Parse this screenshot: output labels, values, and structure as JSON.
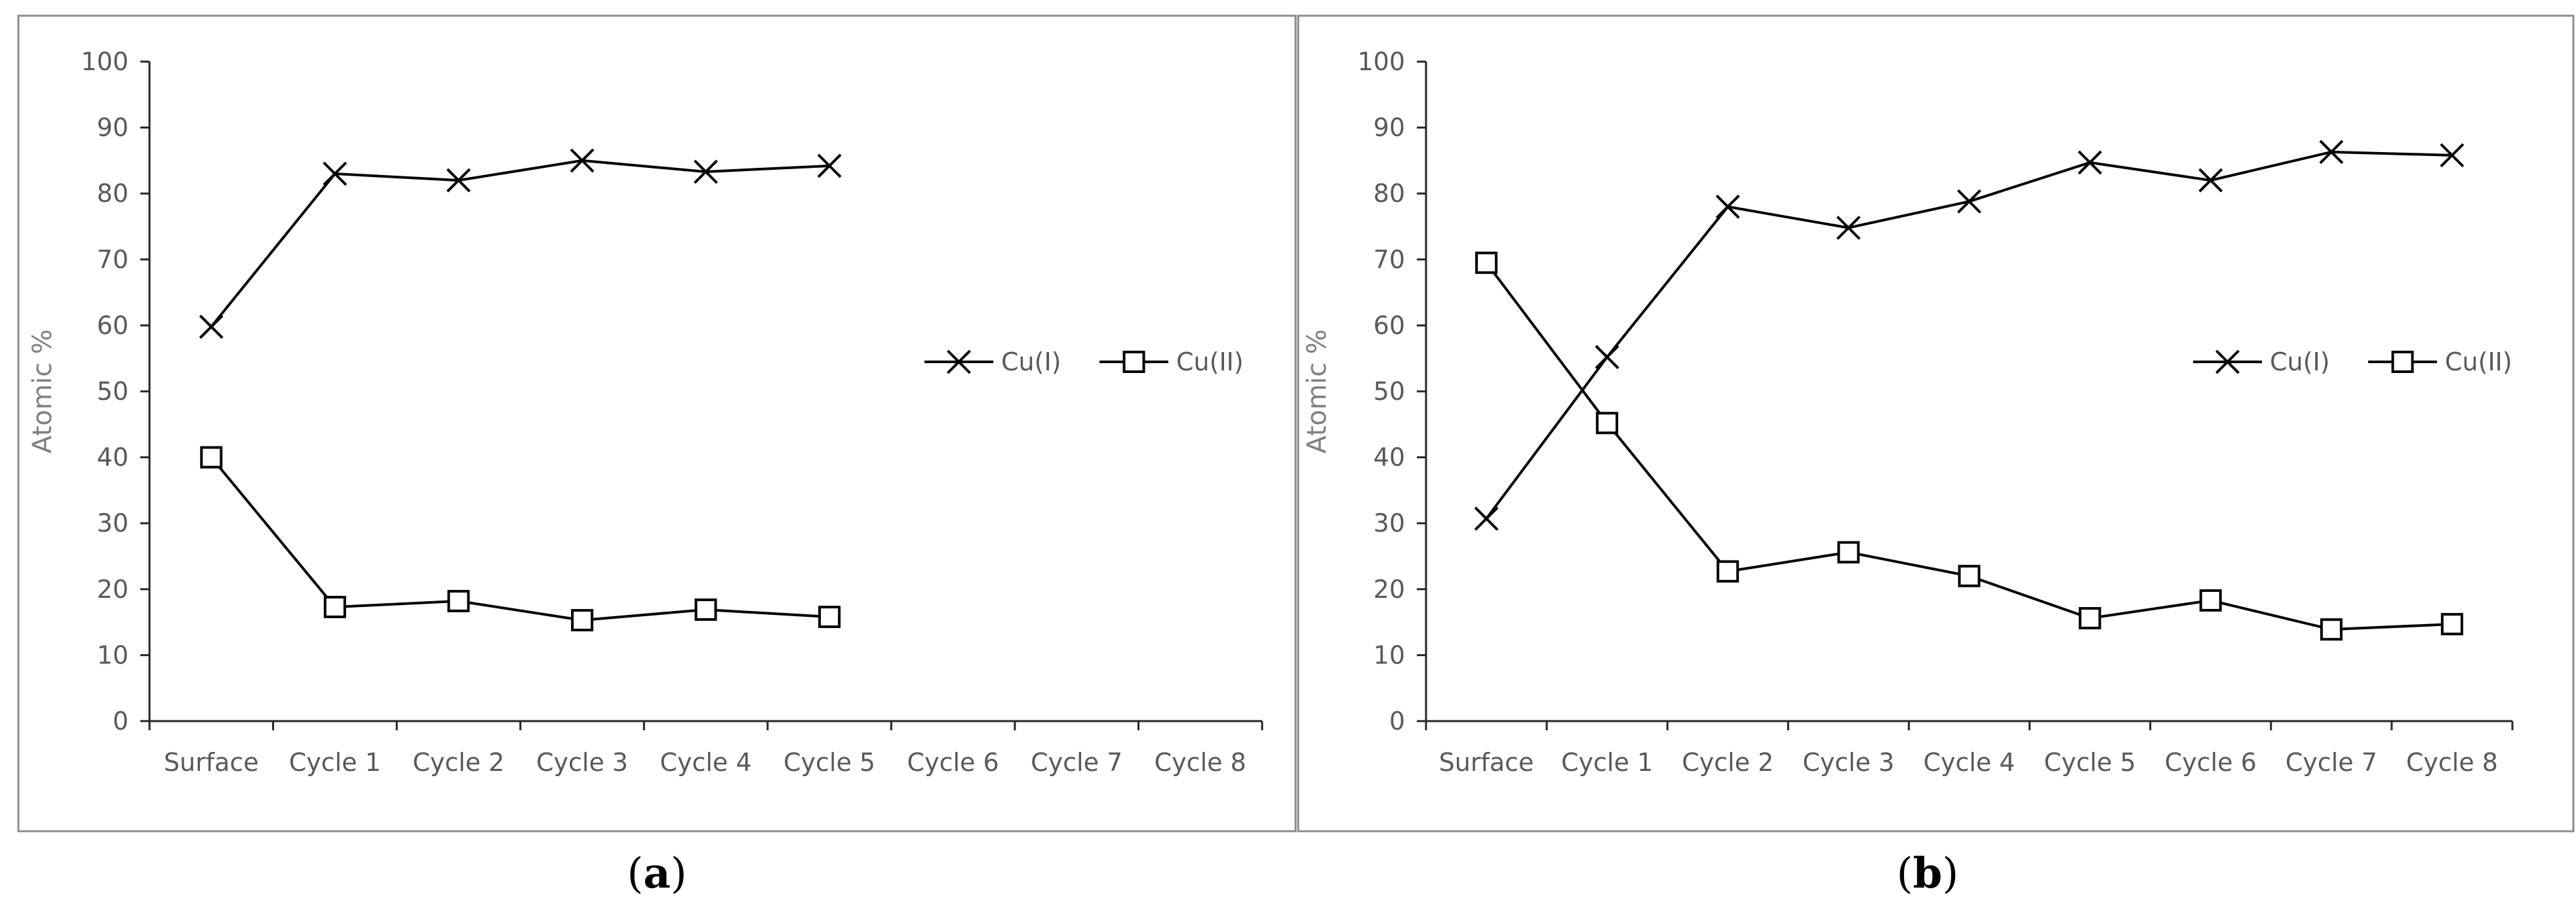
{
  "chart_data": [
    {
      "type": "line",
      "panel_label": "a",
      "categories": [
        "Surface",
        "Cycle 1",
        "Cycle 2",
        "Cycle 3",
        "Cycle 4",
        "Cycle 5",
        "Cycle 6",
        "Cycle 7",
        "Cycle 8"
      ],
      "series": [
        {
          "name": "Cu(I)",
          "marker": "x",
          "values": [
            59.8,
            83.0,
            82.0,
            85.0,
            83.3,
            84.2,
            null,
            null,
            null
          ]
        },
        {
          "name": "Cu(II)",
          "marker": "square",
          "values": [
            40.0,
            17.3,
            18.2,
            15.3,
            16.9,
            15.8,
            null,
            null,
            null
          ]
        }
      ],
      "ylabel": "Atomic %",
      "xlabel": "",
      "ylim": [
        0,
        100
      ],
      "yticks": [
        "0",
        "10",
        "20",
        "30",
        "40",
        "50",
        "60",
        "70",
        "80",
        "90",
        "100"
      ],
      "legend": "right",
      "grid": false
    },
    {
      "type": "line",
      "panel_label": "b",
      "categories": [
        "Surface",
        "Cycle 1",
        "Cycle 2",
        "Cycle 3",
        "Cycle 4",
        "Cycle 5",
        "Cycle 6",
        "Cycle 7",
        "Cycle 8"
      ],
      "series": [
        {
          "name": "Cu(I)",
          "marker": "x",
          "values": [
            30.7,
            55.2,
            78.0,
            74.8,
            78.8,
            84.7,
            82.0,
            86.3,
            85.8
          ]
        },
        {
          "name": "Cu(II)",
          "marker": "square",
          "values": [
            69.5,
            45.2,
            22.7,
            25.6,
            22.0,
            15.6,
            18.3,
            13.9,
            14.7
          ]
        }
      ],
      "ylabel": "Atomic %",
      "xlabel": "",
      "ylim": [
        0,
        100
      ],
      "yticks": [
        "0",
        "10",
        "20",
        "30",
        "40",
        "50",
        "60",
        "70",
        "80",
        "90",
        "100"
      ],
      "legend": "right",
      "grid": false
    }
  ]
}
